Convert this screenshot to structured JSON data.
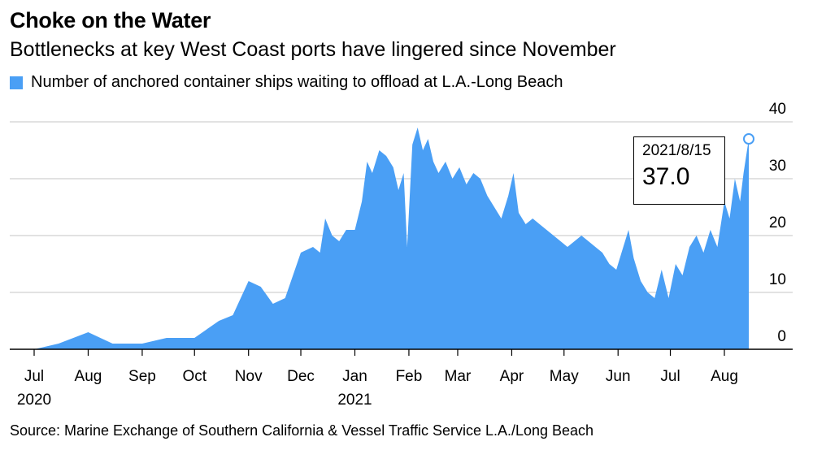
{
  "header": {
    "title": "Choke on the Water",
    "subtitle": "Bottlenecks at key West Coast ports have lingered since November"
  },
  "legend": {
    "label": "Number of anchored container ships waiting to offload at L.A.-Long Beach"
  },
  "tooltip": {
    "date": "2021/8/15",
    "value": "37.0"
  },
  "source": "Source: Marine Exchange of Southern California & Vessel Traffic Service L.A./Long Beach",
  "colors": {
    "area": "#4a9ff5",
    "grid": "#d9d9d9",
    "axis": "#000000"
  },
  "chart_data": {
    "type": "area",
    "ylim": [
      0,
      40
    ],
    "yticks": [
      "0",
      "10",
      "20",
      "30",
      "40"
    ],
    "xticks": [
      {
        "label": "Jul",
        "date": "2020-07-01"
      },
      {
        "label": "Aug",
        "date": "2020-08-01"
      },
      {
        "label": "Sep",
        "date": "2020-09-01"
      },
      {
        "label": "Oct",
        "date": "2020-10-01"
      },
      {
        "label": "Nov",
        "date": "2020-11-01"
      },
      {
        "label": "Dec",
        "date": "2020-12-01"
      },
      {
        "label": "Jan",
        "date": "2021-01-01"
      },
      {
        "label": "Feb",
        "date": "2021-02-01"
      },
      {
        "label": "Mar",
        "date": "2021-03-01"
      },
      {
        "label": "Apr",
        "date": "2021-04-01"
      },
      {
        "label": "May",
        "date": "2021-05-01"
      },
      {
        "label": "Jun",
        "date": "2021-06-01"
      },
      {
        "label": "Jul",
        "date": "2021-07-01"
      },
      {
        "label": "Aug",
        "date": "2021-08-01"
      }
    ],
    "year_labels": [
      {
        "label": "2020",
        "date": "2020-07-01"
      },
      {
        "label": "2021",
        "date": "2021-01-01"
      }
    ],
    "highlight": {
      "x": "2021-08-15",
      "y": 37.0
    },
    "series": [
      {
        "points": [
          [
            "2020-07-01",
            0
          ],
          [
            "2020-07-15",
            1
          ],
          [
            "2020-08-01",
            3
          ],
          [
            "2020-08-15",
            1
          ],
          [
            "2020-09-01",
            1
          ],
          [
            "2020-09-15",
            2
          ],
          [
            "2020-10-01",
            2
          ],
          [
            "2020-10-15",
            5
          ],
          [
            "2020-10-23",
            6
          ],
          [
            "2020-11-01",
            12
          ],
          [
            "2020-11-08",
            11
          ],
          [
            "2020-11-15",
            8
          ],
          [
            "2020-11-22",
            9
          ],
          [
            "2020-12-01",
            17
          ],
          [
            "2020-12-08",
            18
          ],
          [
            "2020-12-12",
            17
          ],
          [
            "2020-12-15",
            23
          ],
          [
            "2020-12-19",
            20
          ],
          [
            "2020-12-23",
            19
          ],
          [
            "2020-12-27",
            21
          ],
          [
            "2021-01-01",
            21
          ],
          [
            "2021-01-05",
            26
          ],
          [
            "2021-01-08",
            33
          ],
          [
            "2021-01-11",
            31
          ],
          [
            "2021-01-15",
            35
          ],
          [
            "2021-01-19",
            34
          ],
          [
            "2021-01-23",
            32
          ],
          [
            "2021-01-26",
            28
          ],
          [
            "2021-01-29",
            31
          ],
          [
            "2021-01-31",
            18
          ],
          [
            "2021-02-03",
            36
          ],
          [
            "2021-02-06",
            39
          ],
          [
            "2021-02-09",
            35
          ],
          [
            "2021-02-12",
            37
          ],
          [
            "2021-02-15",
            33
          ],
          [
            "2021-02-18",
            31
          ],
          [
            "2021-02-22",
            33
          ],
          [
            "2021-02-26",
            30
          ],
          [
            "2021-03-02",
            32
          ],
          [
            "2021-03-06",
            29
          ],
          [
            "2021-03-10",
            31
          ],
          [
            "2021-03-14",
            30
          ],
          [
            "2021-03-18",
            27
          ],
          [
            "2021-03-22",
            25
          ],
          [
            "2021-03-26",
            23
          ],
          [
            "2021-03-30",
            27
          ],
          [
            "2021-04-02",
            31
          ],
          [
            "2021-04-05",
            24
          ],
          [
            "2021-04-09",
            22
          ],
          [
            "2021-04-13",
            23
          ],
          [
            "2021-04-17",
            22
          ],
          [
            "2021-04-21",
            21
          ],
          [
            "2021-04-25",
            20
          ],
          [
            "2021-04-29",
            19
          ],
          [
            "2021-05-03",
            18
          ],
          [
            "2021-05-07",
            19
          ],
          [
            "2021-05-11",
            20
          ],
          [
            "2021-05-15",
            19
          ],
          [
            "2021-05-19",
            18
          ],
          [
            "2021-05-23",
            17
          ],
          [
            "2021-05-27",
            15
          ],
          [
            "2021-05-31",
            14
          ],
          [
            "2021-06-03",
            17
          ],
          [
            "2021-06-07",
            21
          ],
          [
            "2021-06-10",
            16
          ],
          [
            "2021-06-14",
            12
          ],
          [
            "2021-06-18",
            10
          ],
          [
            "2021-06-22",
            9
          ],
          [
            "2021-06-26",
            14
          ],
          [
            "2021-06-30",
            9
          ],
          [
            "2021-07-04",
            15
          ],
          [
            "2021-07-08",
            13
          ],
          [
            "2021-07-12",
            18
          ],
          [
            "2021-07-16",
            20
          ],
          [
            "2021-07-20",
            17
          ],
          [
            "2021-07-24",
            21
          ],
          [
            "2021-07-28",
            18
          ],
          [
            "2021-08-01",
            26
          ],
          [
            "2021-08-04",
            23
          ],
          [
            "2021-08-07",
            30
          ],
          [
            "2021-08-10",
            26
          ],
          [
            "2021-08-12",
            31
          ],
          [
            "2021-08-15",
            37
          ]
        ]
      }
    ]
  }
}
